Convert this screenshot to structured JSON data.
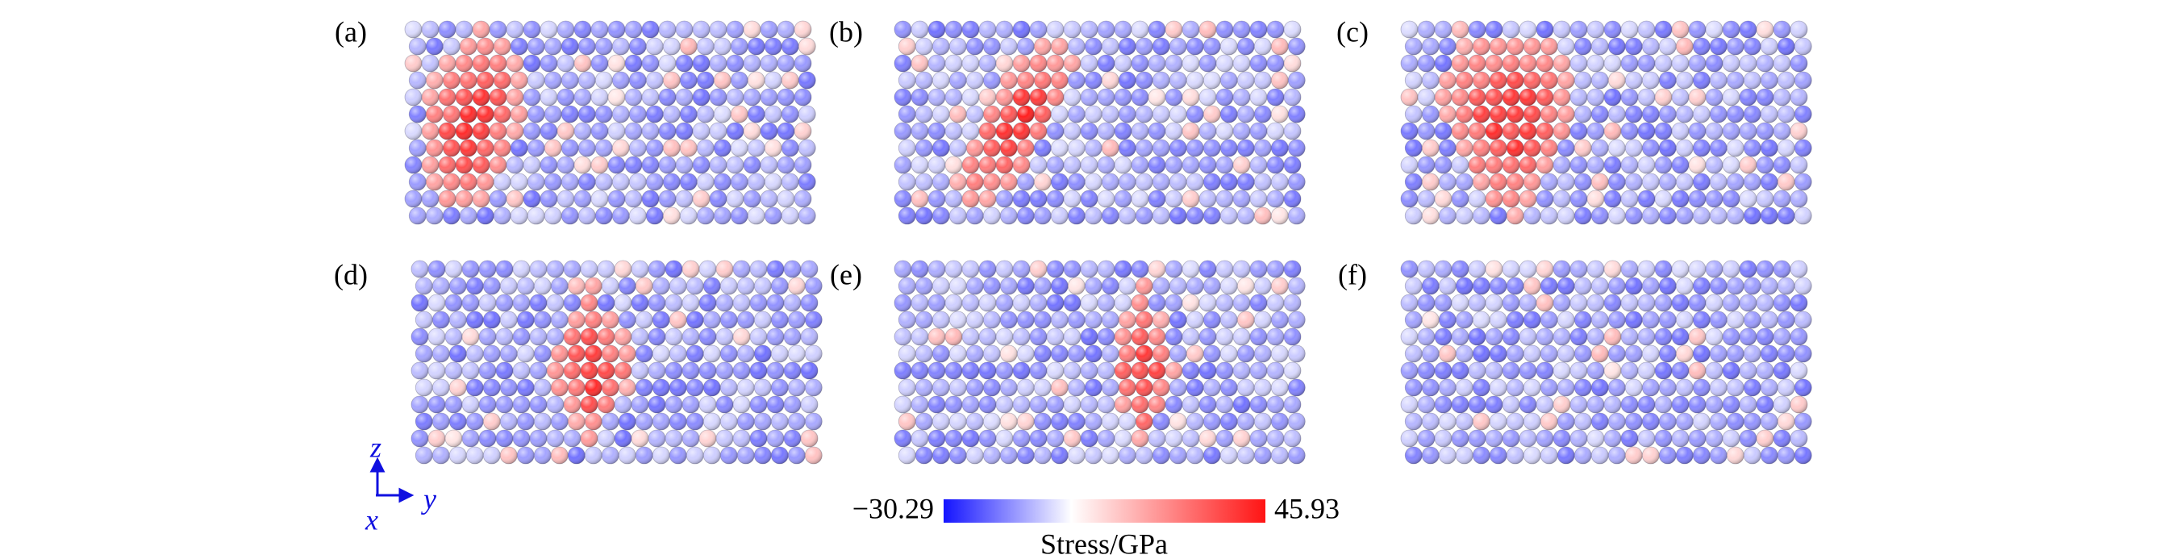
{
  "panels": [
    {
      "label": "(a)"
    },
    {
      "label": "(b)"
    },
    {
      "label": "(c)"
    },
    {
      "label": "(d)"
    },
    {
      "label": "(e)"
    },
    {
      "label": "(f)"
    }
  ],
  "axes": {
    "z": "z",
    "y": "y",
    "x": "x"
  },
  "colorbar": {
    "range": [
      {
        "value": -30.29,
        "label": "−30.29"
      },
      45.93
    ],
    "title": "Stress/GPa",
    "colors": [
      "#1414ff",
      "#ffffff",
      "#ff1414"
    ]
  }
}
